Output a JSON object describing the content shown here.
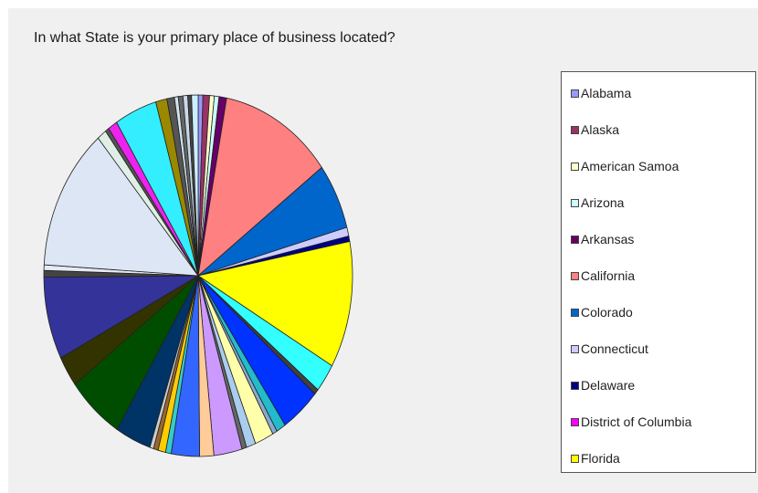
{
  "chart_data": {
    "type": "pie",
    "title": "In what State is your primary place of business located?",
    "legend_position": "right",
    "legend": [
      {
        "label": "Alabama",
        "color": "#9999ff"
      },
      {
        "label": "Alaska",
        "color": "#993366"
      },
      {
        "label": "American Samoa",
        "color": "#ffffcc"
      },
      {
        "label": "Arizona",
        "color": "#ccffff"
      },
      {
        "label": "Arkansas",
        "color": "#660066"
      },
      {
        "label": "California",
        "color": "#ff8080"
      },
      {
        "label": "Colorado",
        "color": "#0066cc"
      },
      {
        "label": "Connecticut",
        "color": "#ccccff"
      },
      {
        "label": "Delaware",
        "color": "#000080"
      },
      {
        "label": "District of Columbia",
        "color": "#ff00ff"
      },
      {
        "label": "Florida",
        "color": "#ffff00"
      }
    ],
    "slices": [
      {
        "value": 0.5,
        "color": "#9999ff"
      },
      {
        "value": 0.7,
        "color": "#993366"
      },
      {
        "value": 0.5,
        "color": "#ffffcc"
      },
      {
        "value": 0.5,
        "color": "#ccffff"
      },
      {
        "value": 0.8,
        "color": "#660066"
      },
      {
        "value": 12.0,
        "color": "#ff8080"
      },
      {
        "value": 6.0,
        "color": "#0066cc"
      },
      {
        "value": 0.8,
        "color": "#ccccff"
      },
      {
        "value": 0.5,
        "color": "#000080"
      },
      {
        "value": 11.5,
        "color": "#ffff00"
      },
      {
        "value": 2.6,
        "color": "#33ffff"
      },
      {
        "value": 0.5,
        "color": "#404040"
      },
      {
        "value": 4.2,
        "color": "#0033ff"
      },
      {
        "value": 1.0,
        "color": "#22bbcc"
      },
      {
        "value": 0.5,
        "color": "#88aacc"
      },
      {
        "value": 2.0,
        "color": "#ffffaa"
      },
      {
        "value": 1.0,
        "color": "#aaccee"
      },
      {
        "value": 0.5,
        "color": "#666666"
      },
      {
        "value": 3.0,
        "color": "#cc99ff"
      },
      {
        "value": 1.5,
        "color": "#ffcc99"
      },
      {
        "value": 3.0,
        "color": "#3366ff"
      },
      {
        "value": 0.6,
        "color": "#33cccc"
      },
      {
        "value": 0.8,
        "color": "#ffcc00"
      },
      {
        "value": 0.5,
        "color": "#996633"
      },
      {
        "value": 0.4,
        "color": "#cccccc"
      },
      {
        "value": 3.8,
        "color": "#003366"
      },
      {
        "value": 6.0,
        "color": "#004d00"
      },
      {
        "value": 2.8,
        "color": "#333300"
      },
      {
        "value": 7.5,
        "color": "#333399"
      },
      {
        "value": 0.6,
        "color": "#444444"
      },
      {
        "value": 0.5,
        "color": "#e6eaf5"
      },
      {
        "value": 13.0,
        "color": "#dde6f5"
      },
      {
        "value": 1.0,
        "color": "#e0efe6"
      },
      {
        "value": 0.4,
        "color": "#555555"
      },
      {
        "value": 1.0,
        "color": "#ee22ee"
      },
      {
        "value": 4.5,
        "color": "#33eeff"
      },
      {
        "value": 1.2,
        "color": "#998800"
      },
      {
        "value": 0.8,
        "color": "#555555"
      },
      {
        "value": 0.4,
        "color": "#cfe5f0"
      },
      {
        "value": 0.5,
        "color": "#666666"
      },
      {
        "value": 0.5,
        "color": "#c8d8e8"
      },
      {
        "value": 0.4,
        "color": "#444444"
      },
      {
        "value": 0.7,
        "color": "#cceeff"
      }
    ]
  }
}
